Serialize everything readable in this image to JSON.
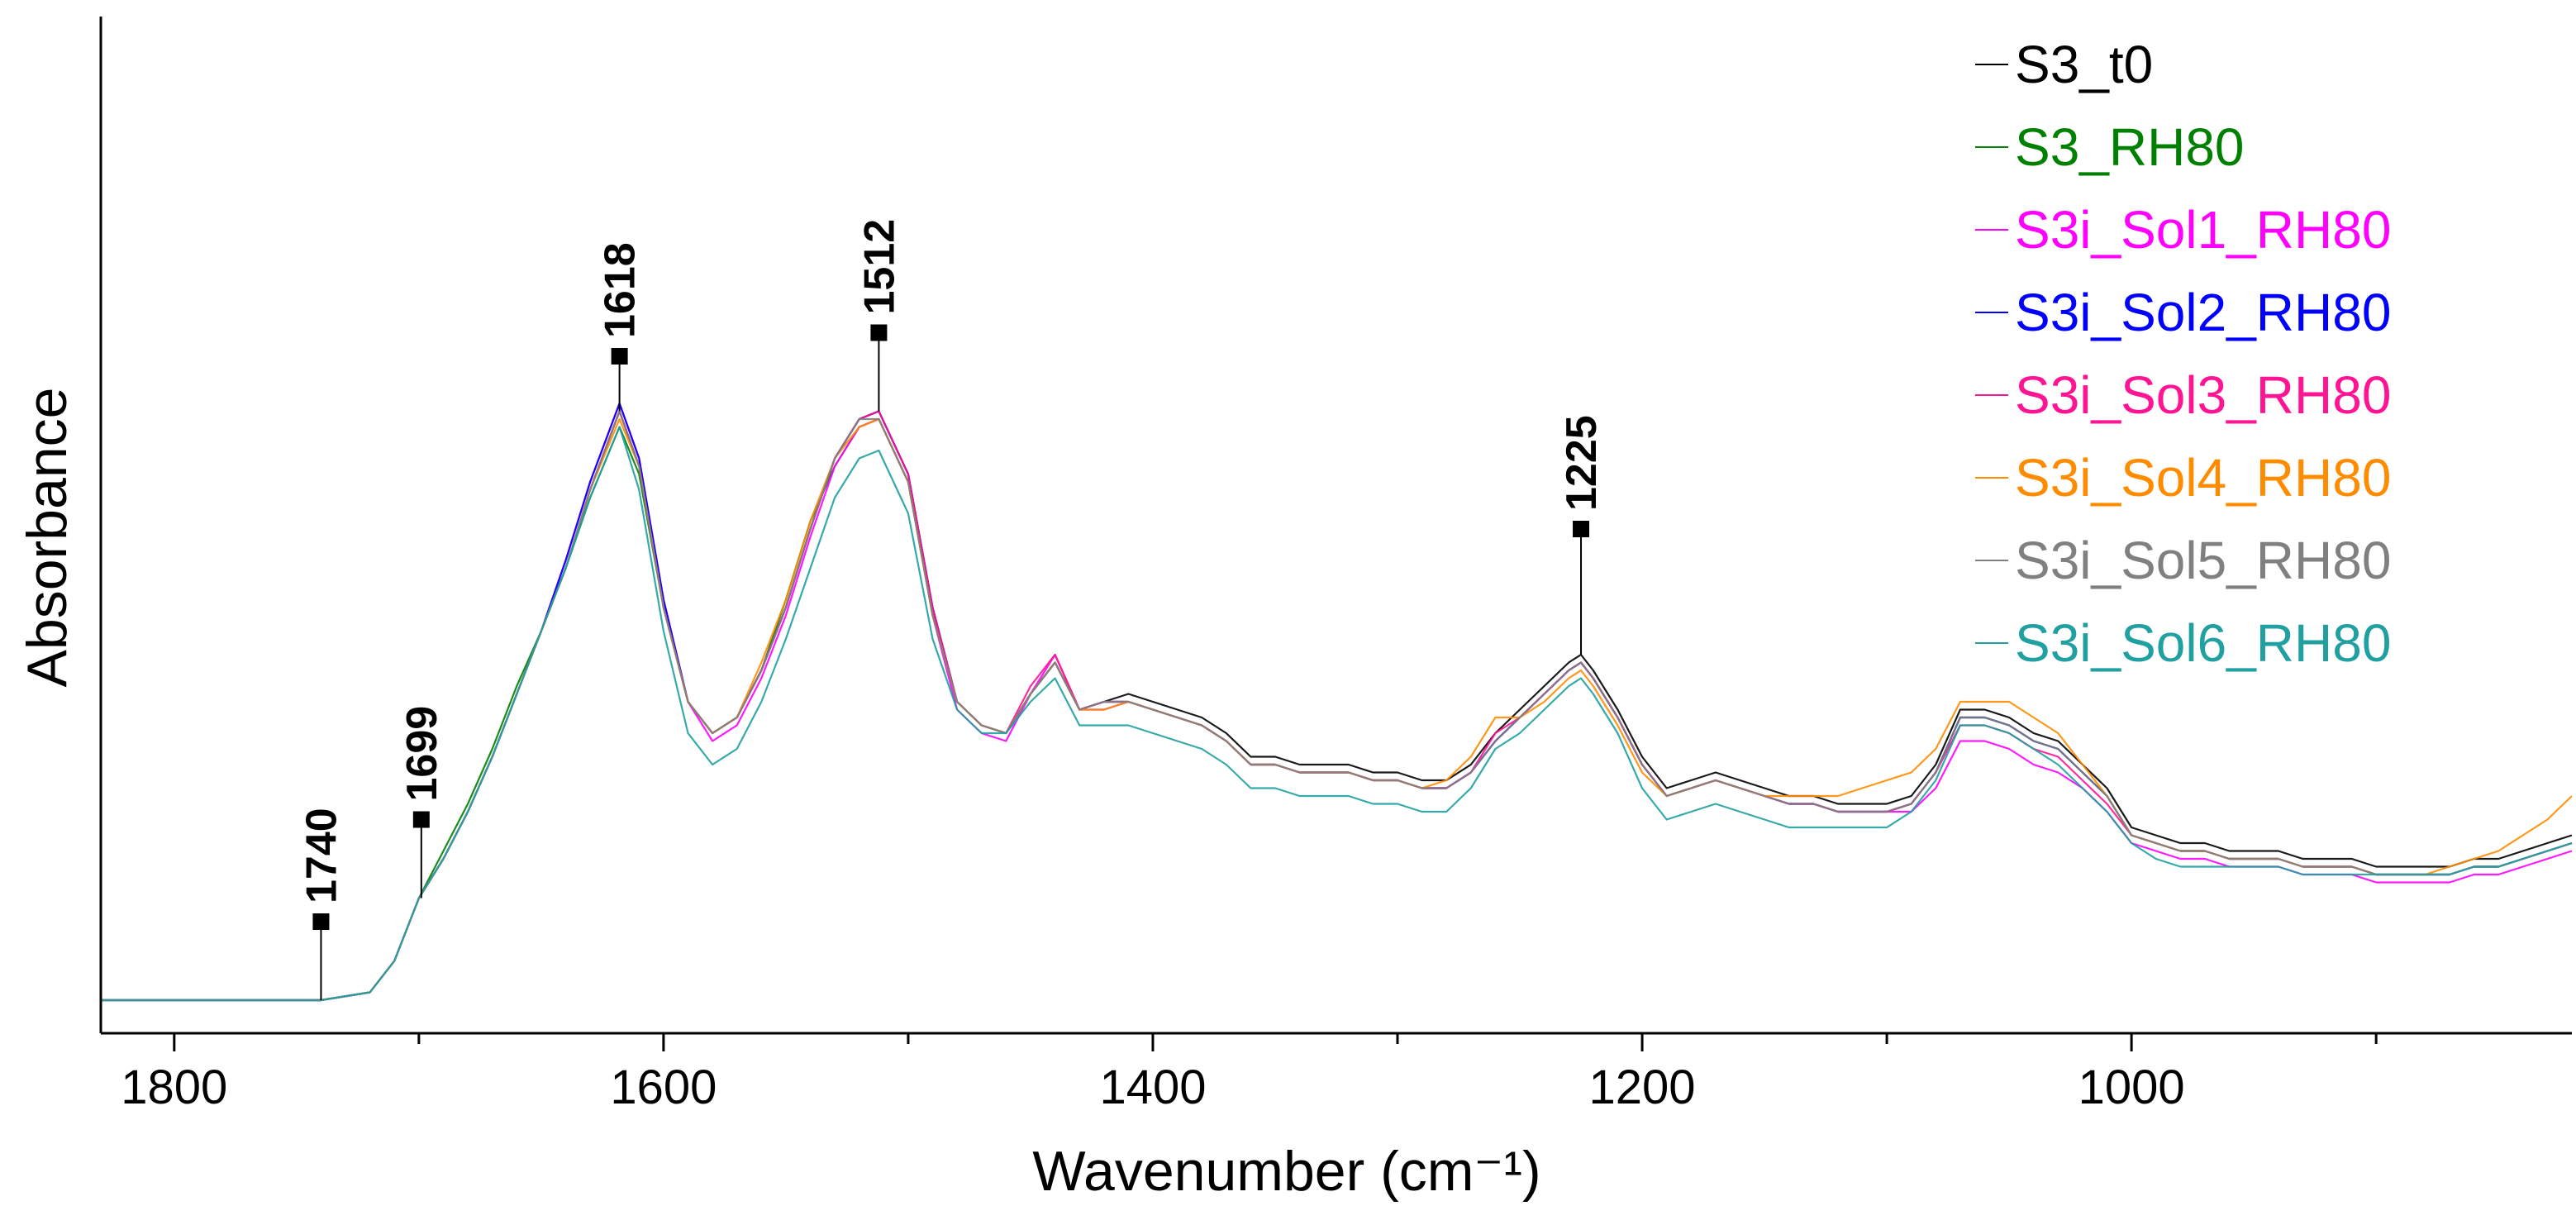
{
  "chart_data": {
    "type": "line",
    "xlabel": "Wavenumber (cm⁻¹)",
    "ylabel": "Absorbance",
    "xlim": [
      1830,
      820
    ],
    "x_reversed": true,
    "ylim": [
      0,
      1
    ],
    "y_ticks_shown": false,
    "xticks": [
      {
        "value": 1800,
        "label": "1800"
      },
      {
        "value": 1600,
        "label": "1600"
      },
      {
        "value": 1400,
        "label": "1400"
      },
      {
        "value": 1200,
        "label": "1200"
      },
      {
        "value": 1000,
        "label": "1000"
      }
    ],
    "minor_xticks": [
      1900,
      1700,
      1500,
      1300,
      1100,
      900
    ],
    "grid": false,
    "legend_position": "top-right",
    "x": [
      1830,
      1800,
      1780,
      1760,
      1740,
      1720,
      1710,
      1700,
      1690,
      1680,
      1670,
      1660,
      1650,
      1640,
      1630,
      1618,
      1610,
      1600,
      1590,
      1580,
      1570,
      1560,
      1550,
      1540,
      1530,
      1520,
      1512,
      1500,
      1490,
      1480,
      1470,
      1460,
      1450,
      1440,
      1430,
      1420,
      1410,
      1400,
      1390,
      1380,
      1370,
      1360,
      1350,
      1340,
      1330,
      1320,
      1310,
      1300,
      1290,
      1280,
      1270,
      1260,
      1250,
      1240,
      1230,
      1225,
      1220,
      1210,
      1200,
      1190,
      1180,
      1170,
      1160,
      1150,
      1140,
      1130,
      1120,
      1110,
      1100,
      1090,
      1080,
      1070,
      1060,
      1050,
      1040,
      1030,
      1020,
      1010,
      1000,
      990,
      980,
      970,
      960,
      950,
      940,
      930,
      920,
      910,
      900,
      890,
      880,
      870,
      860,
      850,
      840,
      830,
      820
    ],
    "series": [
      {
        "name": "S3_t0",
        "color": "#000000",
        "values": [
          0.0,
          0.0,
          0.0,
          0.0,
          0.0,
          0.01,
          0.05,
          0.13,
          0.18,
          0.24,
          0.31,
          0.39,
          0.47,
          0.55,
          0.65,
          0.75,
          0.68,
          0.5,
          0.38,
          0.34,
          0.36,
          0.42,
          0.5,
          0.6,
          0.69,
          0.74,
          0.75,
          0.67,
          0.5,
          0.38,
          0.35,
          0.34,
          0.39,
          0.43,
          0.37,
          0.38,
          0.39,
          0.38,
          0.37,
          0.36,
          0.34,
          0.31,
          0.31,
          0.3,
          0.3,
          0.3,
          0.29,
          0.29,
          0.28,
          0.28,
          0.3,
          0.34,
          0.37,
          0.4,
          0.43,
          0.44,
          0.42,
          0.37,
          0.31,
          0.27,
          0.28,
          0.29,
          0.28,
          0.27,
          0.26,
          0.26,
          0.25,
          0.25,
          0.25,
          0.26,
          0.3,
          0.37,
          0.37,
          0.36,
          0.34,
          0.33,
          0.3,
          0.27,
          0.22,
          0.21,
          0.2,
          0.2,
          0.19,
          0.19,
          0.19,
          0.18,
          0.18,
          0.18,
          0.17,
          0.17,
          0.17,
          0.17,
          0.18,
          0.18,
          0.19,
          0.2,
          0.21
        ]
      },
      {
        "name": "S3_RH80",
        "color": "#008000",
        "values": [
          0.0,
          0.0,
          0.0,
          0.0,
          0.0,
          0.01,
          0.05,
          0.13,
          0.19,
          0.25,
          0.32,
          0.4,
          0.47,
          0.55,
          0.64,
          0.73,
          0.67,
          0.5,
          0.38,
          0.34,
          0.36,
          0.42,
          0.51,
          0.61,
          0.68,
          0.73,
          0.74,
          0.66,
          0.49,
          0.38,
          0.35,
          0.34,
          0.39,
          0.43,
          0.37,
          0.38,
          0.38,
          0.37,
          0.36,
          0.35,
          0.33,
          0.3,
          0.3,
          0.29,
          0.29,
          0.29,
          0.28,
          0.28,
          0.27,
          0.27,
          0.29,
          0.33,
          0.36,
          0.39,
          0.42,
          0.43,
          0.41,
          0.36,
          0.3,
          0.26,
          0.27,
          0.28,
          0.27,
          0.26,
          0.25,
          0.25,
          0.24,
          0.24,
          0.24,
          0.25,
          0.29,
          0.36,
          0.36,
          0.35,
          0.33,
          0.32,
          0.29,
          0.26,
          0.21,
          0.2,
          0.19,
          0.19,
          0.18,
          0.18,
          0.18,
          0.17,
          0.17,
          0.17,
          0.16,
          0.16,
          0.16,
          0.16,
          0.17,
          0.17,
          0.18,
          0.19,
          0.2
        ]
      },
      {
        "name": "S3i_Sol1_RH80",
        "color": "#ff00ff",
        "values": [
          0.0,
          0.0,
          0.0,
          0.0,
          0.0,
          0.01,
          0.05,
          0.13,
          0.18,
          0.24,
          0.31,
          0.39,
          0.47,
          0.56,
          0.66,
          0.76,
          0.69,
          0.51,
          0.38,
          0.33,
          0.35,
          0.41,
          0.49,
          0.59,
          0.68,
          0.73,
          0.74,
          0.66,
          0.49,
          0.37,
          0.34,
          0.33,
          0.39,
          0.44,
          0.37,
          0.37,
          0.38,
          0.37,
          0.36,
          0.35,
          0.33,
          0.3,
          0.3,
          0.29,
          0.29,
          0.29,
          0.28,
          0.28,
          0.27,
          0.27,
          0.29,
          0.33,
          0.36,
          0.39,
          0.42,
          0.43,
          0.41,
          0.36,
          0.3,
          0.26,
          0.27,
          0.28,
          0.27,
          0.26,
          0.25,
          0.25,
          0.24,
          0.24,
          0.24,
          0.24,
          0.27,
          0.33,
          0.33,
          0.32,
          0.3,
          0.29,
          0.27,
          0.24,
          0.2,
          0.19,
          0.18,
          0.18,
          0.17,
          0.17,
          0.17,
          0.16,
          0.16,
          0.16,
          0.15,
          0.15,
          0.15,
          0.15,
          0.16,
          0.16,
          0.17,
          0.18,
          0.19
        ]
      },
      {
        "name": "S3i_Sol2_RH80",
        "color": "#0000ff",
        "values": [
          0.0,
          0.0,
          0.0,
          0.0,
          0.0,
          0.01,
          0.05,
          0.13,
          0.18,
          0.24,
          0.31,
          0.39,
          0.47,
          0.56,
          0.66,
          0.76,
          0.69,
          0.51,
          0.38,
          0.34,
          0.36,
          0.42,
          0.5,
          0.6,
          0.69,
          0.74,
          0.75,
          0.67,
          0.5,
          0.38,
          0.35,
          0.34,
          0.39,
          0.43,
          0.37,
          0.38,
          0.38,
          0.37,
          0.36,
          0.35,
          0.33,
          0.3,
          0.3,
          0.29,
          0.29,
          0.29,
          0.28,
          0.28,
          0.27,
          0.27,
          0.29,
          0.33,
          0.36,
          0.39,
          0.42,
          0.43,
          0.41,
          0.36,
          0.3,
          0.26,
          0.27,
          0.28,
          0.27,
          0.26,
          0.25,
          0.25,
          0.24,
          0.24,
          0.24,
          0.25,
          0.29,
          0.36,
          0.36,
          0.35,
          0.33,
          0.32,
          0.29,
          0.26,
          0.21,
          0.2,
          0.19,
          0.19,
          0.18,
          0.18,
          0.18,
          0.17,
          0.17,
          0.17,
          0.16,
          0.16,
          0.16,
          0.16,
          0.17,
          0.17,
          0.18,
          0.19,
          0.2
        ]
      },
      {
        "name": "S3i_Sol3_RH80",
        "color": "#ff1493",
        "values": [
          0.0,
          0.0,
          0.0,
          0.0,
          0.0,
          0.01,
          0.05,
          0.13,
          0.18,
          0.24,
          0.31,
          0.39,
          0.47,
          0.55,
          0.65,
          0.75,
          0.68,
          0.5,
          0.38,
          0.34,
          0.36,
          0.42,
          0.5,
          0.6,
          0.69,
          0.74,
          0.75,
          0.67,
          0.5,
          0.38,
          0.35,
          0.34,
          0.4,
          0.44,
          0.37,
          0.38,
          0.38,
          0.37,
          0.36,
          0.35,
          0.33,
          0.3,
          0.3,
          0.29,
          0.29,
          0.29,
          0.28,
          0.28,
          0.27,
          0.27,
          0.29,
          0.34,
          0.36,
          0.39,
          0.42,
          0.43,
          0.41,
          0.36,
          0.3,
          0.26,
          0.27,
          0.28,
          0.27,
          0.26,
          0.25,
          0.25,
          0.24,
          0.24,
          0.24,
          0.25,
          0.29,
          0.35,
          0.35,
          0.34,
          0.32,
          0.31,
          0.28,
          0.25,
          0.21,
          0.2,
          0.19,
          0.19,
          0.18,
          0.18,
          0.18,
          0.17,
          0.17,
          0.17,
          0.16,
          0.16,
          0.16,
          0.16,
          0.17,
          0.17,
          0.18,
          0.19,
          0.2
        ]
      },
      {
        "name": "S3i_Sol4_RH80",
        "color": "#ff8c00",
        "values": [
          0.0,
          0.0,
          0.0,
          0.0,
          0.0,
          0.01,
          0.05,
          0.13,
          0.18,
          0.24,
          0.31,
          0.39,
          0.47,
          0.55,
          0.65,
          0.74,
          0.68,
          0.5,
          0.38,
          0.34,
          0.36,
          0.43,
          0.51,
          0.61,
          0.69,
          0.73,
          0.74,
          0.66,
          0.49,
          0.38,
          0.35,
          0.34,
          0.39,
          0.43,
          0.37,
          0.37,
          0.38,
          0.37,
          0.36,
          0.35,
          0.33,
          0.3,
          0.3,
          0.29,
          0.29,
          0.29,
          0.28,
          0.28,
          0.27,
          0.28,
          0.31,
          0.36,
          0.36,
          0.38,
          0.41,
          0.42,
          0.4,
          0.35,
          0.29,
          0.26,
          0.27,
          0.28,
          0.27,
          0.26,
          0.26,
          0.26,
          0.26,
          0.27,
          0.28,
          0.29,
          0.32,
          0.38,
          0.38,
          0.38,
          0.36,
          0.34,
          0.3,
          0.26,
          0.21,
          0.2,
          0.19,
          0.19,
          0.18,
          0.18,
          0.18,
          0.17,
          0.17,
          0.17,
          0.16,
          0.16,
          0.16,
          0.17,
          0.18,
          0.19,
          0.21,
          0.23,
          0.26
        ]
      },
      {
        "name": "S3i_Sol5_RH80",
        "color": "#808080",
        "values": [
          0.0,
          0.0,
          0.0,
          0.0,
          0.0,
          0.01,
          0.05,
          0.13,
          0.18,
          0.24,
          0.31,
          0.39,
          0.47,
          0.55,
          0.65,
          0.75,
          0.68,
          0.5,
          0.38,
          0.34,
          0.36,
          0.42,
          0.5,
          0.6,
          0.69,
          0.74,
          0.74,
          0.66,
          0.49,
          0.38,
          0.35,
          0.34,
          0.39,
          0.43,
          0.37,
          0.38,
          0.38,
          0.37,
          0.36,
          0.35,
          0.33,
          0.3,
          0.3,
          0.29,
          0.29,
          0.29,
          0.28,
          0.28,
          0.27,
          0.27,
          0.29,
          0.33,
          0.36,
          0.39,
          0.42,
          0.43,
          0.41,
          0.36,
          0.3,
          0.26,
          0.27,
          0.28,
          0.27,
          0.26,
          0.25,
          0.25,
          0.24,
          0.24,
          0.24,
          0.25,
          0.29,
          0.36,
          0.36,
          0.35,
          0.33,
          0.32,
          0.29,
          0.26,
          0.21,
          0.2,
          0.19,
          0.19,
          0.18,
          0.18,
          0.18,
          0.17,
          0.17,
          0.17,
          0.16,
          0.16,
          0.16,
          0.16,
          0.17,
          0.17,
          0.18,
          0.19,
          0.2
        ]
      },
      {
        "name": "S3i_Sol6_RH80",
        "color": "#20a0a0",
        "values": [
          0.0,
          0.0,
          0.0,
          0.0,
          0.0,
          0.01,
          0.05,
          0.13,
          0.18,
          0.24,
          0.31,
          0.39,
          0.47,
          0.55,
          0.64,
          0.73,
          0.65,
          0.47,
          0.34,
          0.3,
          0.32,
          0.38,
          0.46,
          0.55,
          0.64,
          0.69,
          0.7,
          0.62,
          0.46,
          0.37,
          0.34,
          0.34,
          0.38,
          0.41,
          0.35,
          0.35,
          0.35,
          0.34,
          0.33,
          0.32,
          0.3,
          0.27,
          0.27,
          0.26,
          0.26,
          0.26,
          0.25,
          0.25,
          0.24,
          0.24,
          0.27,
          0.32,
          0.34,
          0.37,
          0.4,
          0.41,
          0.39,
          0.34,
          0.27,
          0.23,
          0.24,
          0.25,
          0.24,
          0.23,
          0.22,
          0.22,
          0.22,
          0.22,
          0.22,
          0.24,
          0.28,
          0.35,
          0.35,
          0.34,
          0.32,
          0.3,
          0.27,
          0.24,
          0.2,
          0.18,
          0.17,
          0.17,
          0.17,
          0.17,
          0.17,
          0.16,
          0.16,
          0.16,
          0.16,
          0.16,
          0.16,
          0.16,
          0.17,
          0.17,
          0.18,
          0.19,
          0.2
        ]
      }
    ],
    "peak_annotations": [
      {
        "x": 1740,
        "label": "1740",
        "marker_y": 0.1
      },
      {
        "x": 1699,
        "label": "1699",
        "marker_y": 0.23
      },
      {
        "x": 1618,
        "label": "1618",
        "marker_y": 0.82
      },
      {
        "x": 1512,
        "label": "1512",
        "marker_y": 0.85
      },
      {
        "x": 1225,
        "label": "1225",
        "marker_y": 0.6
      }
    ]
  }
}
